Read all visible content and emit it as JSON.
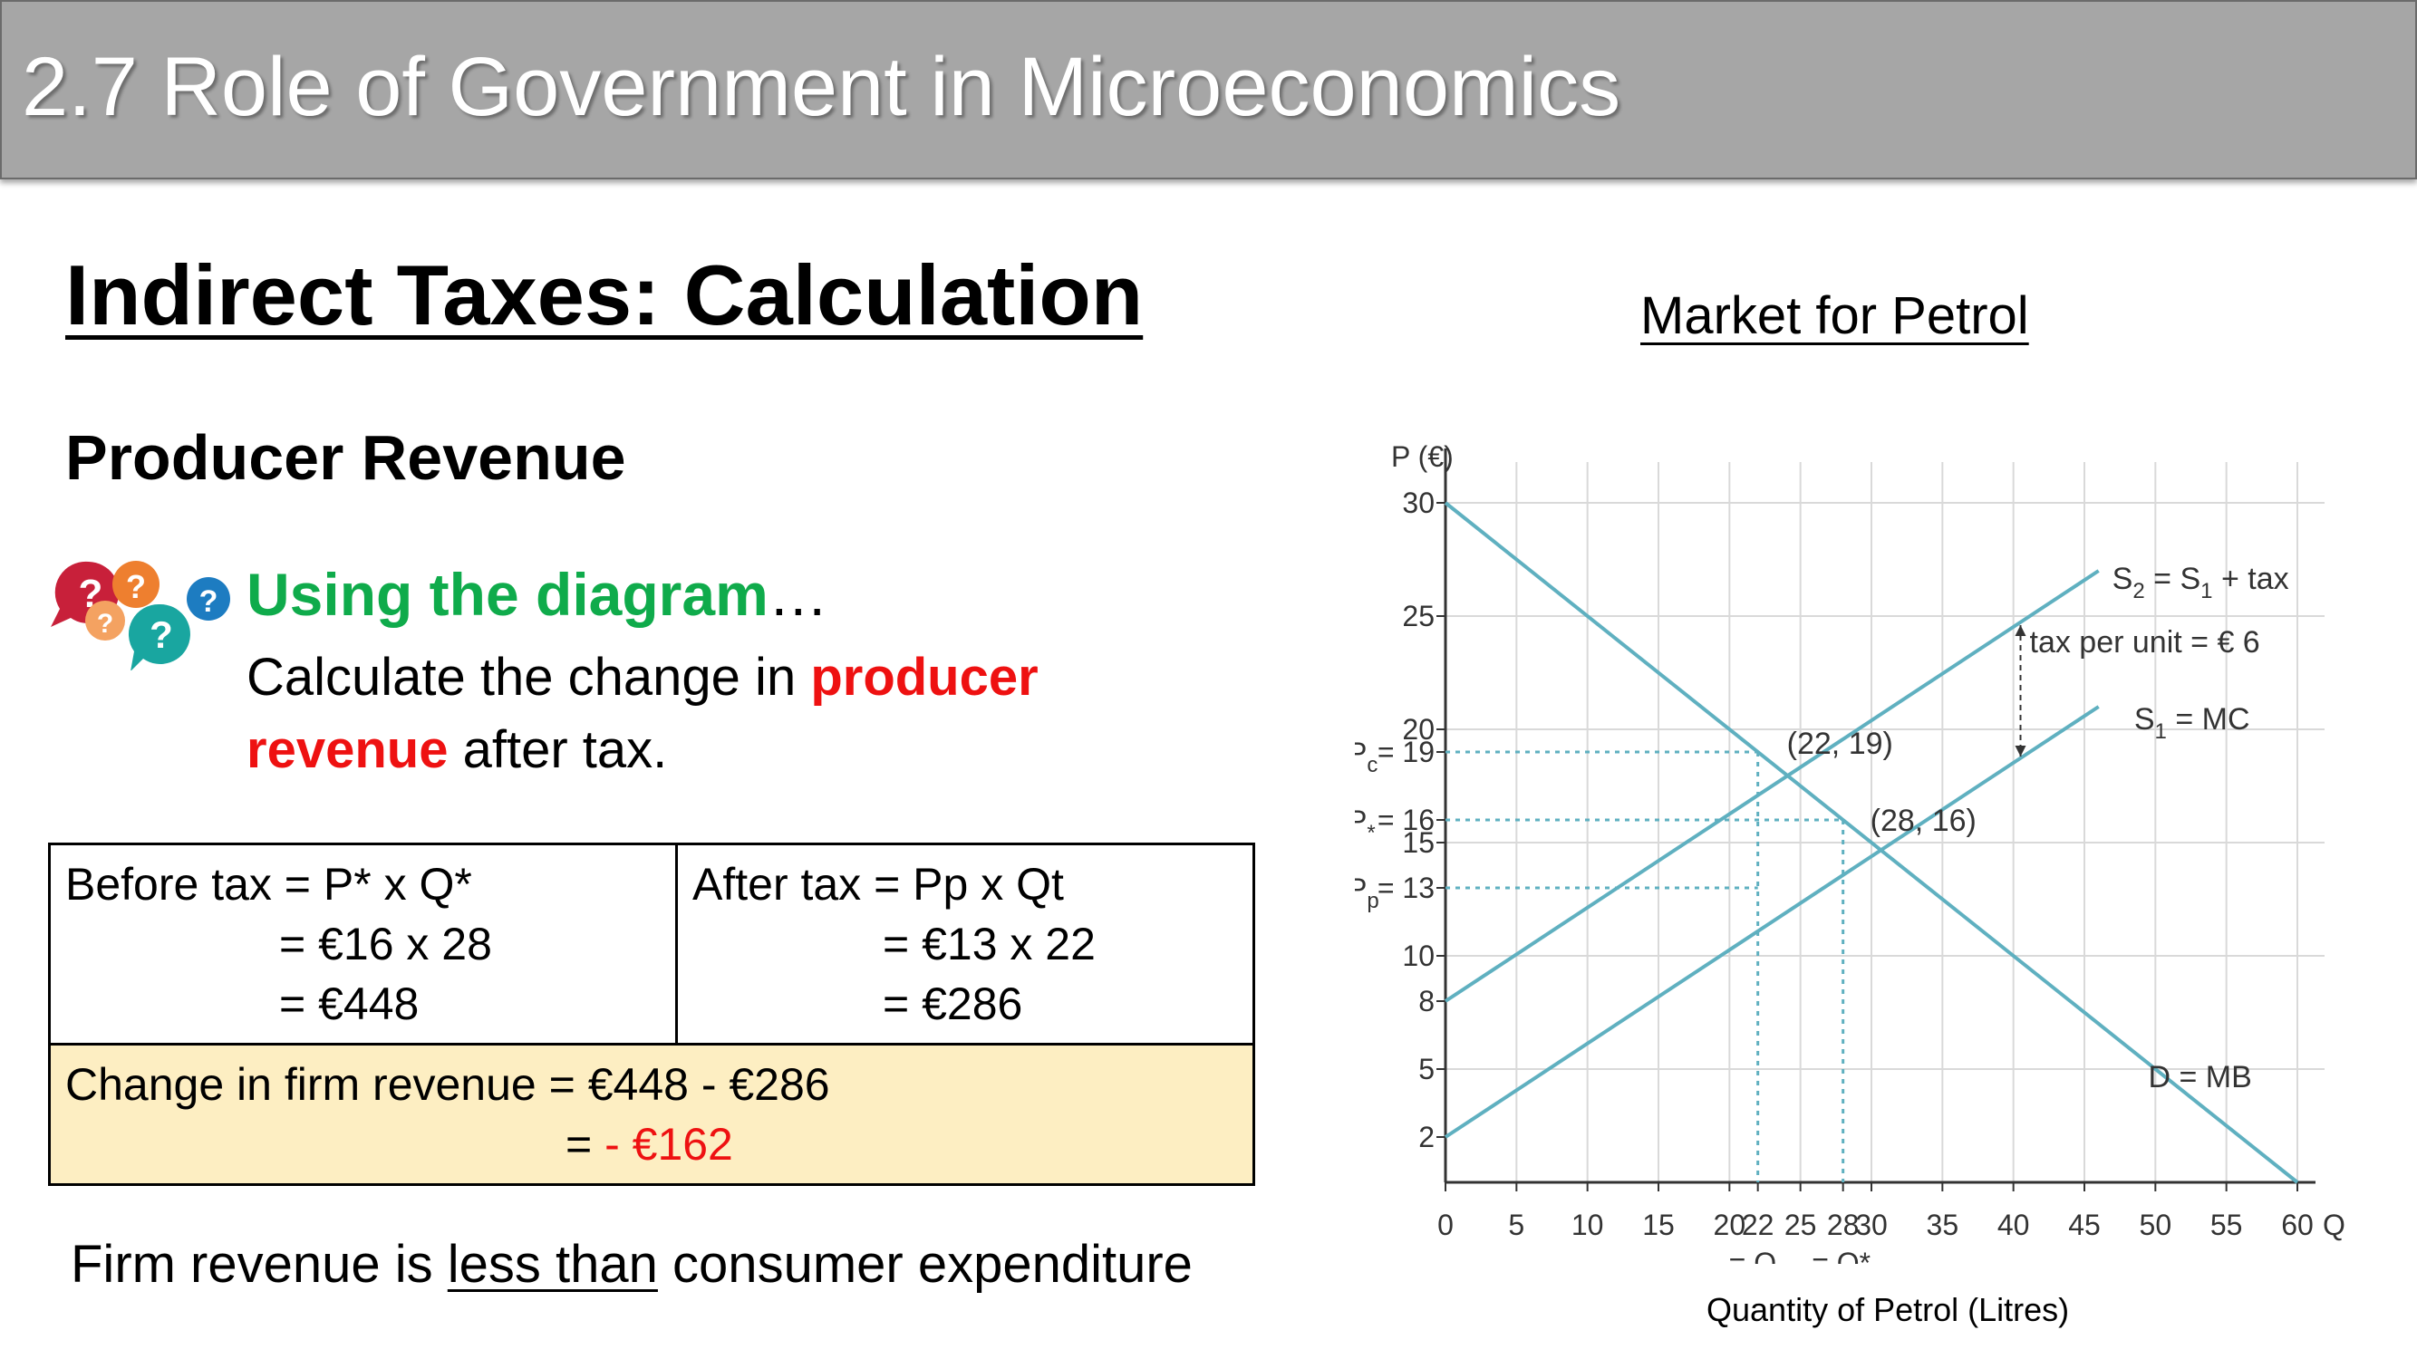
{
  "header": {
    "title": "2.7 Role of Government in Microeconomics"
  },
  "main_title": "Indirect Taxes: Calculation",
  "subtitle": "Producer Revenue",
  "prompt": {
    "lead": "Using the diagram",
    "lead_dots": "…",
    "line_start": "Calculate the change in ",
    "highlight": "producer revenue",
    "line_end": " after tax."
  },
  "calc_table": {
    "before": {
      "line1": "Before tax = P* x Q*",
      "line2": "= €16 x 28",
      "line3": "= €448"
    },
    "after": {
      "line1": "After tax = Pp x Qt",
      "line2": "= €13 x 22",
      "line3": "= €286"
    },
    "change": {
      "line1": "Change in firm revenue = €448 - €286",
      "eq": "= ",
      "value": "- €162"
    }
  },
  "conclusion": {
    "start": "Firm revenue is ",
    "emphasis": "less than",
    "end": " consumer expenditure"
  },
  "chart_title": "Market for Petrol",
  "x_caption": "Quantity of Petrol (Litres)",
  "colors": {
    "line": "#5fb0c0",
    "grid": "#d9d9d9",
    "highlight_red": "#ee1111",
    "lead_green": "#0fab4b",
    "table_fill": "#fdeec2",
    "header_gray": "#a6a6a6"
  },
  "icons": [
    "question-bubble-icon"
  ],
  "chart_data": {
    "type": "line",
    "ylabel": "P (€)",
    "xlabel": "Q",
    "xlim": [
      0,
      60
    ],
    "ylim": [
      0,
      30
    ],
    "grid": true,
    "x_ticks": [
      {
        "v": 0,
        "label": "0"
      },
      {
        "v": 5,
        "label": "5"
      },
      {
        "v": 10,
        "label": "10"
      },
      {
        "v": 15,
        "label": "15"
      },
      {
        "v": 20,
        "label": "20"
      },
      {
        "v": 22,
        "label": "22"
      },
      {
        "v": 25,
        "label": "25"
      },
      {
        "v": 28,
        "label": "28"
      },
      {
        "v": 30,
        "label": "30"
      },
      {
        "v": 35,
        "label": "35"
      },
      {
        "v": 40,
        "label": "40"
      },
      {
        "v": 45,
        "label": "45"
      },
      {
        "v": 50,
        "label": "50"
      },
      {
        "v": 55,
        "label": "55"
      },
      {
        "v": 60,
        "label": "60"
      }
    ],
    "y_ticks": [
      {
        "v": 2,
        "label": "2"
      },
      {
        "v": 5,
        "label": "5"
      },
      {
        "v": 8,
        "label": "8"
      },
      {
        "v": 10,
        "label": "10"
      },
      {
        "v": 13,
        "label": "= 13"
      },
      {
        "v": 15,
        "label": "15"
      },
      {
        "v": 16,
        "label": "= 16"
      },
      {
        "v": 19,
        "label": "= 19"
      },
      {
        "v": 20,
        "label": "20"
      },
      {
        "v": 25,
        "label": "25"
      },
      {
        "v": 30,
        "label": "30"
      }
    ],
    "price_labels": [
      {
        "v": 19,
        "sym": "P",
        "sub": "c"
      },
      {
        "v": 16,
        "sym": "P",
        "sub": "*"
      },
      {
        "v": 13,
        "sym": "P",
        "sub": "p"
      }
    ],
    "series": [
      {
        "name": "S2 = S1 + tax",
        "x": [
          0,
          46
        ],
        "y": [
          8,
          27
        ]
      },
      {
        "name": "S1 = MC",
        "x": [
          0,
          46
        ],
        "y": [
          2,
          21
        ]
      },
      {
        "name": "D = MB",
        "x": [
          0,
          60
        ],
        "y": [
          30,
          0
        ]
      }
    ],
    "series_labels": [
      {
        "main": "S",
        "sub": "2",
        "rest": " = S",
        "sub2": "1",
        "rest2": " + tax"
      },
      {
        "main": "S",
        "sub": "1",
        "rest": " = MC",
        "sub2": "",
        "rest2": ""
      },
      {
        "main": "D = MB",
        "sub": "",
        "rest": "",
        "sub2": "",
        "rest2": ""
      }
    ],
    "points": [
      {
        "x": 22,
        "y": 19,
        "label": "(22, 19)"
      },
      {
        "x": 28,
        "y": 16,
        "label": "(28, 16)"
      }
    ],
    "annotations": {
      "tax": "tax per unit = € 6",
      "qt_label": "= Q",
      "qt_sub": "t",
      "qstar_label": "= Q*"
    }
  }
}
